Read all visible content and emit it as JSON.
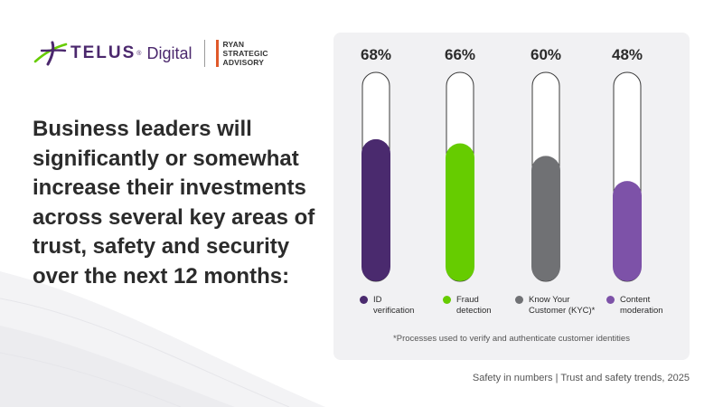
{
  "header": {
    "brand_name": "TELUS",
    "brand_tm": "®",
    "brand_suffix": "Digital",
    "partner_lines": [
      "RYAN",
      "STRATEGIC",
      "ADVISORY"
    ]
  },
  "headline": "Business leaders will significantly or somewhat increase their investments across several key areas of trust, safety and security over the next 12 months:",
  "chart_data": {
    "type": "bar",
    "categories": [
      "ID verification",
      "Fraud detection",
      "Know Your Customer (KYC)*",
      "Content moderation"
    ],
    "values": [
      68,
      66,
      60,
      48
    ],
    "value_labels": [
      "68%",
      "66%",
      "60%",
      "48%"
    ],
    "ylim": [
      0,
      100
    ],
    "colors": [
      "#4a2a6e",
      "#66cc00",
      "#707174",
      "#7d52a8"
    ],
    "legend": [
      {
        "lines": [
          "ID",
          "verification"
        ]
      },
      {
        "lines": [
          "Fraud",
          "detection"
        ]
      },
      {
        "lines": [
          "Know Your",
          "Customer (KYC)*"
        ]
      },
      {
        "lines": [
          "Content",
          "moderation"
        ]
      }
    ],
    "legend_position": "bottom",
    "grid": false,
    "footnote": "*Processes used to verify and authenticate customer identities"
  },
  "footer": {
    "caption": "Safety in numbers | Trust and safety trends, 2025"
  }
}
